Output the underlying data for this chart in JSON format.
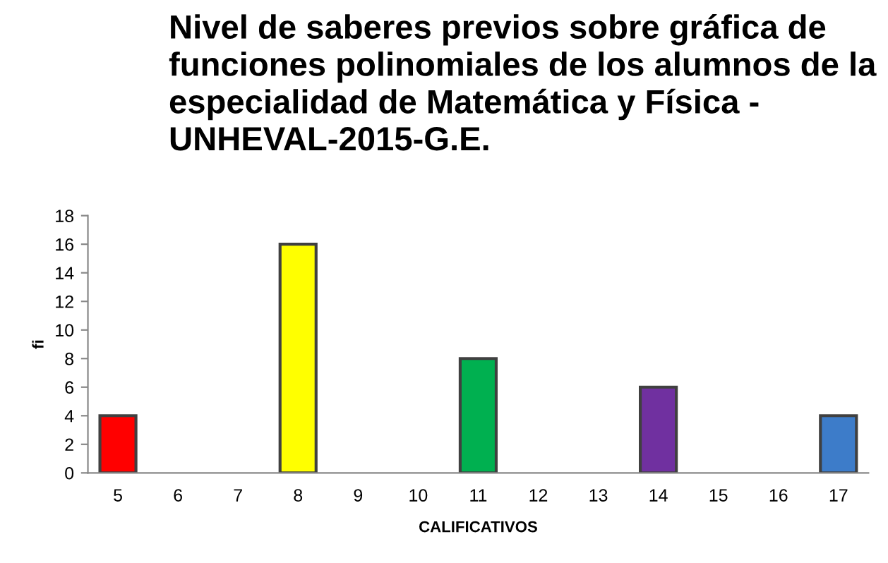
{
  "chart_data": {
    "type": "bar",
    "title": "Nivel de saberes previos sobre gráfica de funciones polinomiales de los alumnos de la especialidad de Matemática y Física - UNHEVAL-2015-G.E.",
    "xlabel": "CALIFICATIVOS",
    "ylabel": "fi",
    "categories": [
      "5",
      "6",
      "7",
      "8",
      "9",
      "10",
      "11",
      "12",
      "13",
      "14",
      "15",
      "16",
      "17"
    ],
    "values": [
      4,
      0,
      0,
      16,
      0,
      0,
      8,
      0,
      0,
      6,
      0,
      0,
      4
    ],
    "colors": [
      "#ff0000",
      null,
      null,
      "#ffff00",
      null,
      null,
      "#00b050",
      null,
      null,
      "#7030a0",
      null,
      null,
      "#3d7cc9"
    ],
    "ylim": [
      0,
      18
    ],
    "yticks": [
      0,
      2,
      4,
      6,
      8,
      10,
      12,
      14,
      16,
      18
    ],
    "grid": false,
    "legend": false
  }
}
